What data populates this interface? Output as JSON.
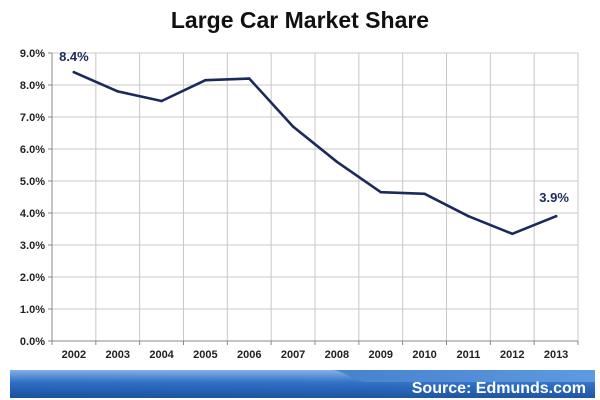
{
  "chart_data": {
    "type": "line",
    "title": "Large Car Market Share",
    "categories": [
      "2002",
      "2003",
      "2004",
      "2005",
      "2006",
      "2007",
      "2008",
      "2009",
      "2010",
      "2011",
      "2012",
      "2013"
    ],
    "series": [
      {
        "name": "Large Car Market Share",
        "values": [
          8.4,
          7.8,
          7.5,
          8.15,
          8.2,
          6.7,
          5.6,
          4.65,
          4.6,
          3.9,
          3.35,
          3.9
        ]
      }
    ],
    "ylim": [
      0,
      9
    ],
    "yticks": [
      0,
      1,
      2,
      3,
      4,
      5,
      6,
      7,
      8,
      9
    ],
    "ytick_labels": [
      "0.0%",
      "1.0%",
      "2.0%",
      "3.0%",
      "4.0%",
      "5.0%",
      "6.0%",
      "7.0%",
      "8.0%",
      "9.0%"
    ],
    "data_labels": [
      {
        "index": 0,
        "text": "8.4%"
      },
      {
        "index": 11,
        "text": "3.9%"
      }
    ],
    "xlabel": "",
    "ylabel": "",
    "grid": true,
    "legend": "none"
  },
  "footer": {
    "source": "Source: Edmunds.com"
  },
  "colors": {
    "line": "#1b2a5a",
    "grid": "#c8c8c8",
    "axis": "#888888",
    "banner": "#1f5fb5",
    "banner_light": "#6fa3e0"
  }
}
